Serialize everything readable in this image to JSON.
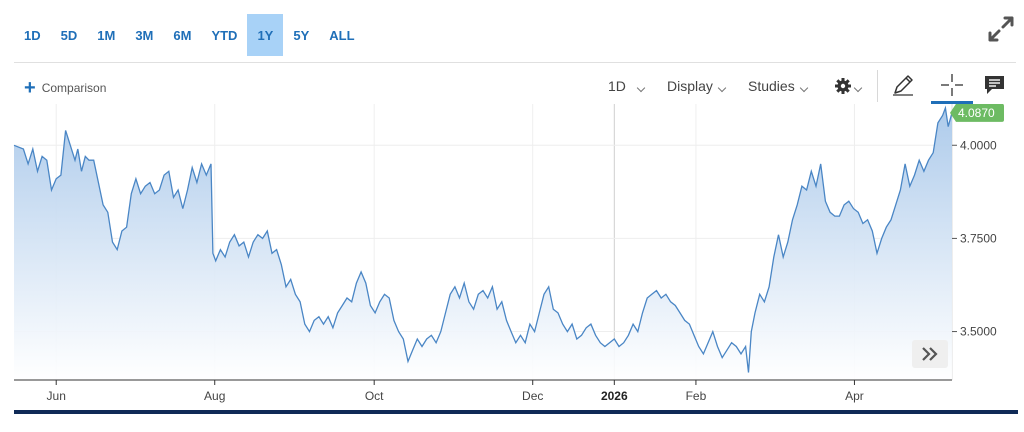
{
  "range_buttons": [
    {
      "label": "1D",
      "active": false
    },
    {
      "label": "5D",
      "active": false
    },
    {
      "label": "1M",
      "active": false
    },
    {
      "label": "3M",
      "active": false
    },
    {
      "label": "6M",
      "active": false
    },
    {
      "label": "YTD",
      "active": false
    },
    {
      "label": "1Y",
      "active": true
    },
    {
      "label": "5Y",
      "active": false
    },
    {
      "label": "ALL",
      "active": false
    }
  ],
  "toolbar": {
    "comparison_label": "Comparison",
    "interval_label": "1D",
    "display_label": "Display",
    "studies_label": "Studies"
  },
  "colors": {
    "line": "#4a86c5",
    "fill_top": "#a9c8ea",
    "accent": "#1f6fb8",
    "price_tag": "#6dbb63"
  },
  "chart_data": {
    "type": "area",
    "x_ticks": [
      {
        "label": "Jun",
        "t": 0.045,
        "bold": false
      },
      {
        "label": "Aug",
        "t": 0.214,
        "bold": false
      },
      {
        "label": "Oct",
        "t": 0.384,
        "bold": false
      },
      {
        "label": "Dec",
        "t": 0.553,
        "bold": false
      },
      {
        "label": "2026",
        "t": 0.64,
        "bold": true
      },
      {
        "label": "Feb",
        "t": 0.727,
        "bold": false
      },
      {
        "label": "Apr",
        "t": 0.896,
        "bold": false
      }
    ],
    "y_ticks": [
      4.0,
      3.75,
      3.5
    ],
    "ylim": [
      3.37,
      4.1
    ],
    "last_value_label": "4.0870",
    "last_value": 4.087,
    "points": [
      [
        0.0,
        4.0
      ],
      [
        0.01,
        3.99
      ],
      [
        0.015,
        3.95
      ],
      [
        0.02,
        3.99
      ],
      [
        0.025,
        3.93
      ],
      [
        0.03,
        3.97
      ],
      [
        0.035,
        3.96
      ],
      [
        0.04,
        3.88
      ],
      [
        0.045,
        3.91
      ],
      [
        0.05,
        3.92
      ],
      [
        0.055,
        4.04
      ],
      [
        0.06,
        4.0
      ],
      [
        0.065,
        3.96
      ],
      [
        0.068,
        3.99
      ],
      [
        0.072,
        3.93
      ],
      [
        0.076,
        3.97
      ],
      [
        0.08,
        3.96
      ],
      [
        0.085,
        3.96
      ],
      [
        0.09,
        3.9
      ],
      [
        0.095,
        3.84
      ],
      [
        0.1,
        3.82
      ],
      [
        0.105,
        3.74
      ],
      [
        0.11,
        3.72
      ],
      [
        0.115,
        3.77
      ],
      [
        0.12,
        3.78
      ],
      [
        0.125,
        3.87
      ],
      [
        0.13,
        3.91
      ],
      [
        0.135,
        3.87
      ],
      [
        0.14,
        3.89
      ],
      [
        0.145,
        3.9
      ],
      [
        0.15,
        3.87
      ],
      [
        0.155,
        3.88
      ],
      [
        0.16,
        3.92
      ],
      [
        0.165,
        3.93
      ],
      [
        0.17,
        3.86
      ],
      [
        0.175,
        3.88
      ],
      [
        0.18,
        3.83
      ],
      [
        0.185,
        3.88
      ],
      [
        0.19,
        3.94
      ],
      [
        0.195,
        3.9
      ],
      [
        0.2,
        3.95
      ],
      [
        0.205,
        3.92
      ],
      [
        0.21,
        3.95
      ],
      [
        0.212,
        3.71
      ],
      [
        0.215,
        3.69
      ],
      [
        0.22,
        3.72
      ],
      [
        0.225,
        3.7
      ],
      [
        0.23,
        3.74
      ],
      [
        0.235,
        3.76
      ],
      [
        0.24,
        3.73
      ],
      [
        0.245,
        3.74
      ],
      [
        0.25,
        3.7
      ],
      [
        0.255,
        3.74
      ],
      [
        0.26,
        3.76
      ],
      [
        0.265,
        3.75
      ],
      [
        0.27,
        3.77
      ],
      [
        0.275,
        3.71
      ],
      [
        0.28,
        3.72
      ],
      [
        0.285,
        3.68
      ],
      [
        0.29,
        3.62
      ],
      [
        0.295,
        3.64
      ],
      [
        0.3,
        3.6
      ],
      [
        0.305,
        3.58
      ],
      [
        0.31,
        3.52
      ],
      [
        0.315,
        3.5
      ],
      [
        0.32,
        3.53
      ],
      [
        0.325,
        3.54
      ],
      [
        0.33,
        3.52
      ],
      [
        0.335,
        3.54
      ],
      [
        0.34,
        3.51
      ],
      [
        0.345,
        3.55
      ],
      [
        0.35,
        3.57
      ],
      [
        0.355,
        3.59
      ],
      [
        0.36,
        3.58
      ],
      [
        0.365,
        3.63
      ],
      [
        0.37,
        3.66
      ],
      [
        0.375,
        3.63
      ],
      [
        0.38,
        3.57
      ],
      [
        0.385,
        3.55
      ],
      [
        0.39,
        3.58
      ],
      [
        0.395,
        3.6
      ],
      [
        0.4,
        3.59
      ],
      [
        0.405,
        3.53
      ],
      [
        0.41,
        3.5
      ],
      [
        0.415,
        3.48
      ],
      [
        0.42,
        3.42
      ],
      [
        0.425,
        3.45
      ],
      [
        0.43,
        3.48
      ],
      [
        0.435,
        3.46
      ],
      [
        0.44,
        3.48
      ],
      [
        0.445,
        3.49
      ],
      [
        0.45,
        3.47
      ],
      [
        0.455,
        3.5
      ],
      [
        0.46,
        3.55
      ],
      [
        0.465,
        3.6
      ],
      [
        0.47,
        3.62
      ],
      [
        0.475,
        3.59
      ],
      [
        0.48,
        3.63
      ],
      [
        0.485,
        3.58
      ],
      [
        0.49,
        3.56
      ],
      [
        0.495,
        3.6
      ],
      [
        0.5,
        3.61
      ],
      [
        0.505,
        3.59
      ],
      [
        0.51,
        3.62
      ],
      [
        0.515,
        3.56
      ],
      [
        0.52,
        3.58
      ],
      [
        0.525,
        3.53
      ],
      [
        0.53,
        3.5
      ],
      [
        0.535,
        3.47
      ],
      [
        0.54,
        3.49
      ],
      [
        0.545,
        3.47
      ],
      [
        0.55,
        3.52
      ],
      [
        0.555,
        3.5
      ],
      [
        0.56,
        3.55
      ],
      [
        0.565,
        3.6
      ],
      [
        0.57,
        3.62
      ],
      [
        0.575,
        3.56
      ],
      [
        0.58,
        3.55
      ],
      [
        0.585,
        3.52
      ],
      [
        0.59,
        3.5
      ],
      [
        0.595,
        3.52
      ],
      [
        0.6,
        3.48
      ],
      [
        0.605,
        3.49
      ],
      [
        0.61,
        3.51
      ],
      [
        0.615,
        3.52
      ],
      [
        0.62,
        3.49
      ],
      [
        0.625,
        3.47
      ],
      [
        0.63,
        3.46
      ],
      [
        0.635,
        3.47
      ],
      [
        0.64,
        3.48
      ],
      [
        0.645,
        3.46
      ],
      [
        0.65,
        3.47
      ],
      [
        0.655,
        3.49
      ],
      [
        0.66,
        3.52
      ],
      [
        0.665,
        3.5
      ],
      [
        0.67,
        3.55
      ],
      [
        0.675,
        3.59
      ],
      [
        0.68,
        3.6
      ],
      [
        0.685,
        3.61
      ],
      [
        0.69,
        3.59
      ],
      [
        0.695,
        3.6
      ],
      [
        0.7,
        3.58
      ],
      [
        0.705,
        3.57
      ],
      [
        0.71,
        3.55
      ],
      [
        0.715,
        3.53
      ],
      [
        0.72,
        3.52
      ],
      [
        0.725,
        3.49
      ],
      [
        0.73,
        3.46
      ],
      [
        0.735,
        3.44
      ],
      [
        0.74,
        3.47
      ],
      [
        0.745,
        3.5
      ],
      [
        0.75,
        3.46
      ],
      [
        0.755,
        3.43
      ],
      [
        0.76,
        3.45
      ],
      [
        0.765,
        3.47
      ],
      [
        0.77,
        3.46
      ],
      [
        0.775,
        3.44
      ],
      [
        0.78,
        3.46
      ],
      [
        0.783,
        3.39
      ],
      [
        0.786,
        3.5
      ],
      [
        0.79,
        3.55
      ],
      [
        0.795,
        3.6
      ],
      [
        0.8,
        3.58
      ],
      [
        0.805,
        3.62
      ],
      [
        0.81,
        3.7
      ],
      [
        0.815,
        3.76
      ],
      [
        0.82,
        3.7
      ],
      [
        0.825,
        3.74
      ],
      [
        0.83,
        3.8
      ],
      [
        0.835,
        3.84
      ],
      [
        0.84,
        3.89
      ],
      [
        0.845,
        3.88
      ],
      [
        0.85,
        3.93
      ],
      [
        0.855,
        3.89
      ],
      [
        0.86,
        3.95
      ],
      [
        0.865,
        3.85
      ],
      [
        0.87,
        3.82
      ],
      [
        0.875,
        3.81
      ],
      [
        0.88,
        3.81
      ],
      [
        0.885,
        3.84
      ],
      [
        0.89,
        3.85
      ],
      [
        0.895,
        3.83
      ],
      [
        0.9,
        3.82
      ],
      [
        0.905,
        3.79
      ],
      [
        0.91,
        3.8
      ],
      [
        0.915,
        3.77
      ],
      [
        0.92,
        3.71
      ],
      [
        0.925,
        3.75
      ],
      [
        0.93,
        3.78
      ],
      [
        0.935,
        3.8
      ],
      [
        0.94,
        3.84
      ],
      [
        0.945,
        3.88
      ],
      [
        0.95,
        3.95
      ],
      [
        0.955,
        3.89
      ],
      [
        0.96,
        3.92
      ],
      [
        0.965,
        3.96
      ],
      [
        0.97,
        3.93
      ],
      [
        0.975,
        3.96
      ],
      [
        0.98,
        3.98
      ],
      [
        0.985,
        4.06
      ],
      [
        0.99,
        4.08
      ],
      [
        0.993,
        4.1
      ],
      [
        0.996,
        4.05
      ],
      [
        1.0,
        4.087
      ]
    ]
  }
}
